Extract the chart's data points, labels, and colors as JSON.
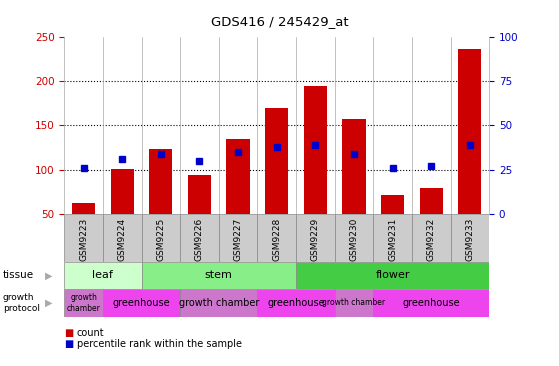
{
  "title": "GDS416 / 245429_at",
  "samples": [
    "GSM9223",
    "GSM9224",
    "GSM9225",
    "GSM9226",
    "GSM9227",
    "GSM9228",
    "GSM9229",
    "GSM9230",
    "GSM9231",
    "GSM9232",
    "GSM9233"
  ],
  "counts": [
    62,
    101,
    123,
    94,
    135,
    170,
    194,
    157,
    72,
    79,
    236
  ],
  "percentiles": [
    26,
    31,
    34,
    30,
    35,
    38,
    39,
    34,
    26,
    27,
    39
  ],
  "ylim_left": [
    50,
    250
  ],
  "ylim_right": [
    0,
    100
  ],
  "yticks_left": [
    50,
    100,
    150,
    200,
    250
  ],
  "yticks_right": [
    0,
    25,
    50,
    75,
    100
  ],
  "bar_color": "#cc0000",
  "dot_color": "#0000cc",
  "grid_color": "#000000",
  "tissue_groups": [
    {
      "label": "leaf",
      "start": 0,
      "end": 2,
      "color": "#ccffcc"
    },
    {
      "label": "stem",
      "start": 2,
      "end": 6,
      "color": "#88ee88"
    },
    {
      "label": "flower",
      "start": 6,
      "end": 11,
      "color": "#44cc44"
    }
  ],
  "growth_groups": [
    {
      "label": "growth\nchamber",
      "start": 0,
      "end": 1,
      "color": "#cc77cc"
    },
    {
      "label": "greenhouse",
      "start": 1,
      "end": 3,
      "color": "#ee44ee"
    },
    {
      "label": "growth chamber",
      "start": 3,
      "end": 5,
      "color": "#cc77cc"
    },
    {
      "label": "greenhouse",
      "start": 5,
      "end": 7,
      "color": "#ee44ee"
    },
    {
      "label": "growth chamber",
      "start": 7,
      "end": 8,
      "color": "#cc77cc"
    },
    {
      "label": "greenhouse",
      "start": 8,
      "end": 11,
      "color": "#ee44ee"
    }
  ],
  "legend_count_color": "#cc0000",
  "legend_dot_color": "#0000cc",
  "bg_color": "#ffffff",
  "left_yaxis_color": "#cc0000",
  "right_yaxis_color": "#0000cc",
  "sample_bg_color": "#cccccc",
  "sample_border_color": "#888888"
}
